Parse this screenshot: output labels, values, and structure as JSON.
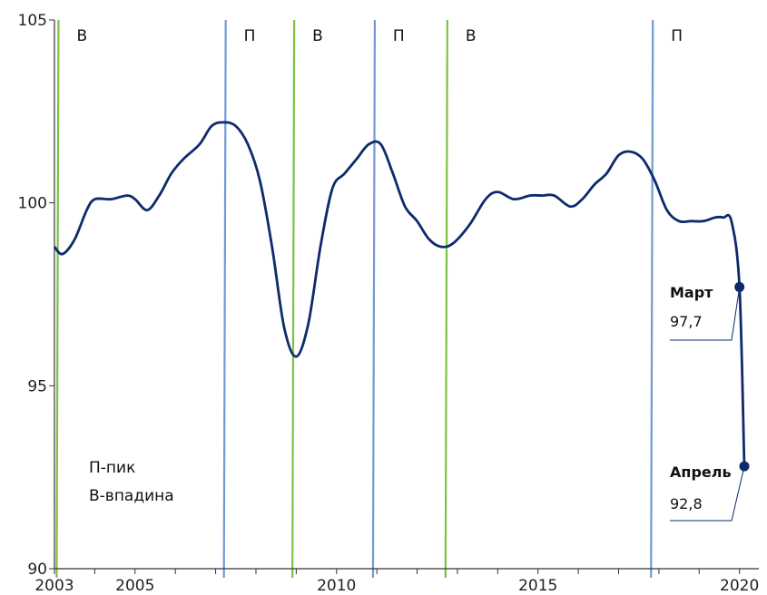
{
  "chart_data": {
    "type": "line",
    "title": "",
    "xlabel": "",
    "ylabel": "",
    "xlim": [
      2003,
      2020.3
    ],
    "ylim": [
      90,
      105
    ],
    "x_ticks": [
      2003,
      2005,
      2010,
      2015,
      2020
    ],
    "y_ticks": [
      90,
      95,
      100,
      105
    ],
    "grid": false,
    "colors": {
      "series": "#0d2a6b",
      "peak_line": "#6f9ad6",
      "trough_line": "#7cc242"
    },
    "series": [
      {
        "x": [
          2003.0,
          2003.2,
          2003.5,
          2003.8,
          2004.0,
          2004.4,
          2004.8,
          2005.0,
          2005.3,
          2005.6,
          2005.9,
          2006.2,
          2006.6,
          2006.9,
          2007.2,
          2007.5,
          2007.8,
          2008.1,
          2008.4,
          2008.7,
          2009.0,
          2009.3,
          2009.6,
          2009.9,
          2010.2,
          2010.5,
          2010.8,
          2011.1,
          2011.4,
          2011.7,
          2012.0,
          2012.3,
          2012.6,
          2012.9,
          2013.3,
          2013.7,
          2014.0,
          2014.4,
          2014.8,
          2015.1,
          2015.4,
          2015.8,
          2016.1,
          2016.4,
          2016.7,
          2017.0,
          2017.3,
          2017.6,
          2017.9,
          2018.2,
          2018.5,
          2018.8,
          2019.1,
          2019.4,
          2019.6,
          2019.8,
          2020.0,
          2020.12
        ],
        "y": [
          98.8,
          98.6,
          99.0,
          99.8,
          100.1,
          100.1,
          100.2,
          100.1,
          99.8,
          100.2,
          100.8,
          101.2,
          101.6,
          102.1,
          102.2,
          102.1,
          101.6,
          100.6,
          98.8,
          96.6,
          95.8,
          96.7,
          98.8,
          100.4,
          100.8,
          101.2,
          101.6,
          101.6,
          100.8,
          99.9,
          99.5,
          99.0,
          98.8,
          98.9,
          99.4,
          100.1,
          100.3,
          100.1,
          100.2,
          100.2,
          100.2,
          99.9,
          100.1,
          100.5,
          100.8,
          101.3,
          101.4,
          101.2,
          100.6,
          99.8,
          99.5,
          99.5,
          99.5,
          99.6,
          99.6,
          99.5,
          97.7,
          92.8
        ]
      }
    ],
    "cycle_markers": [
      {
        "x": 2003.1,
        "label": "В",
        "kind": "trough"
      },
      {
        "x": 2007.25,
        "label": "П",
        "kind": "peak"
      },
      {
        "x": 2008.95,
        "label": "В",
        "kind": "trough"
      },
      {
        "x": 2010.95,
        "label": "П",
        "kind": "peak"
      },
      {
        "x": 2012.75,
        "label": "В",
        "kind": "trough"
      },
      {
        "x": 2017.85,
        "label": "П",
        "kind": "peak"
      }
    ],
    "legend_lines": [
      "П-пик",
      "В-впадина"
    ],
    "annotations": [
      {
        "x": 2020.0,
        "y": 97.7,
        "title": "Март",
        "value": "97,7"
      },
      {
        "x": 2020.12,
        "y": 92.8,
        "title": "Апрель",
        "value": "92,8"
      }
    ]
  }
}
